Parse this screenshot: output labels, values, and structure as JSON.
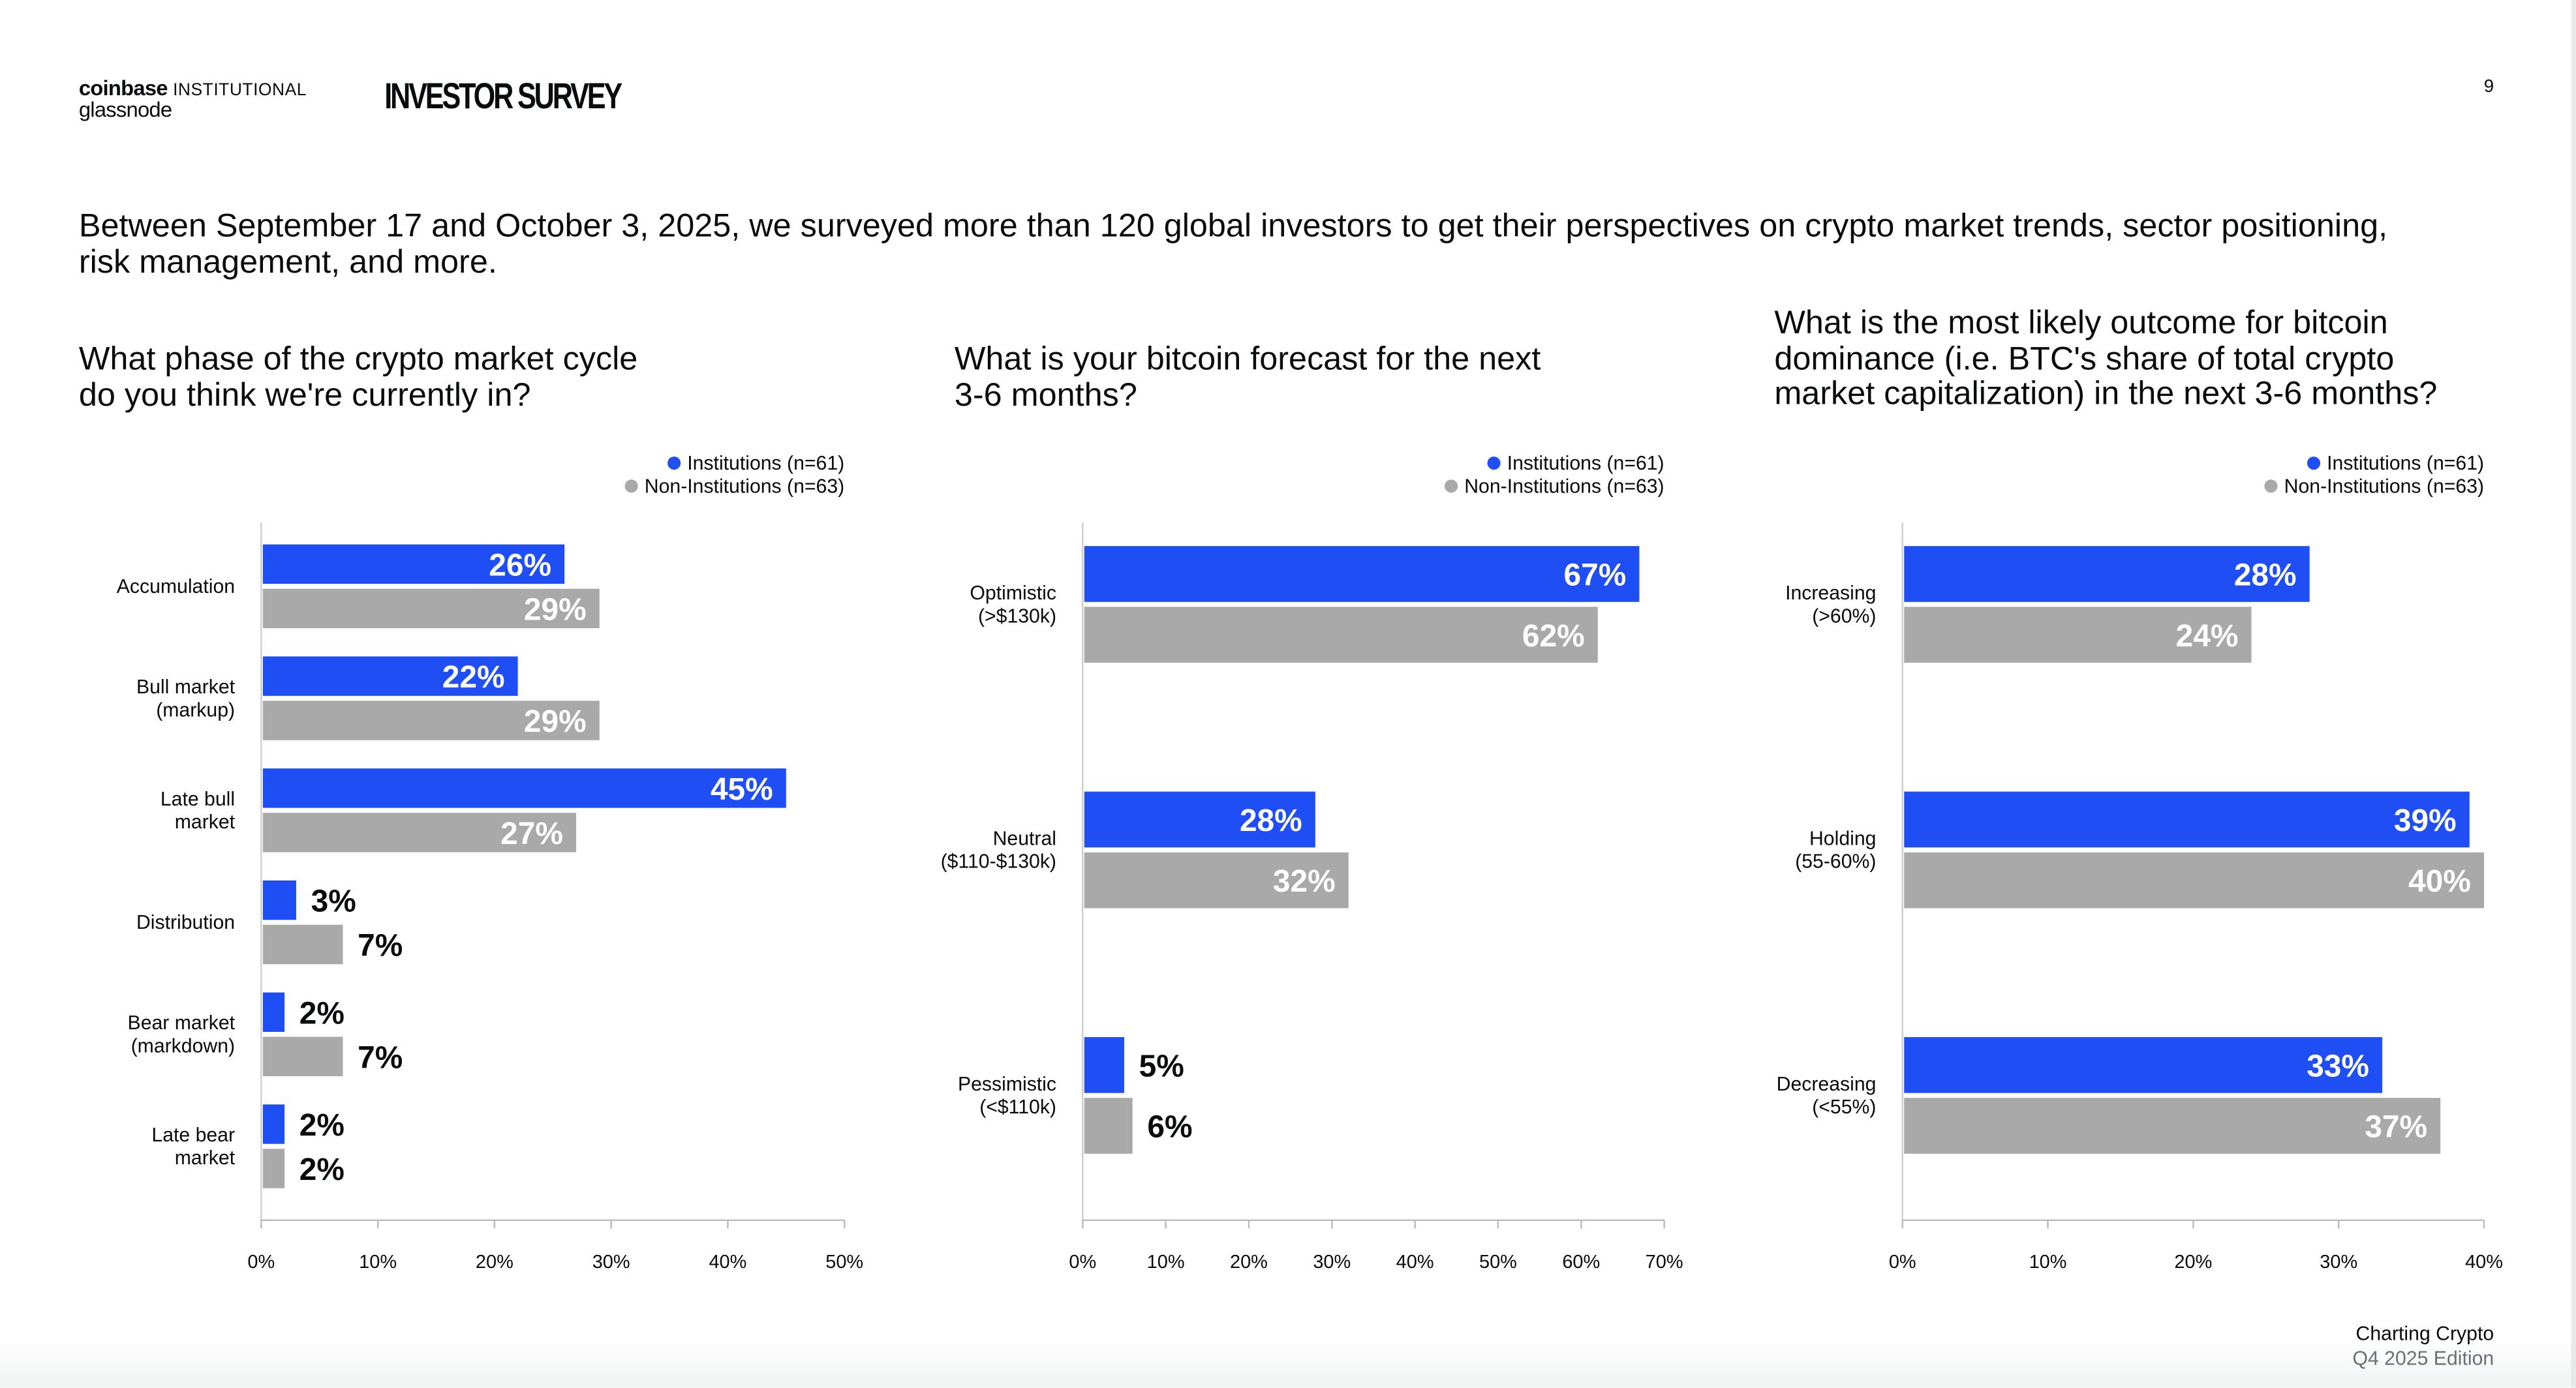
{
  "header": {
    "logo_brand": "coinbase",
    "logo_suffix": "INSTITUTIONAL",
    "logo_partner": "glassnode",
    "section_title": "INVESTOR SURVEY",
    "page_number": "9"
  },
  "intro": "Between September 17 and October 3, 2025, we surveyed more than 120 global investors to get their perspectives on crypto market trends, sector positioning, risk management, and more.",
  "footer": {
    "title": "Charting Crypto",
    "edition": "Q4 2025 Edition"
  },
  "colors": {
    "institutions": "#1f4ef5",
    "non_institutions": "#a9a9a9"
  },
  "chart_data": [
    {
      "type": "bar",
      "orientation": "horizontal",
      "title_lines": [
        "What phase of the crypto market cycle",
        "do you think we're currently in?"
      ],
      "categories": [
        [
          "Accumulation"
        ],
        [
          "Bull market",
          "(markup)"
        ],
        [
          "Late bull",
          "market"
        ],
        [
          "Distribution"
        ],
        [
          "Bear market",
          "(markdown)"
        ],
        [
          "Late bear",
          "market"
        ]
      ],
      "series": [
        {
          "name": "Institutions (n=61)",
          "values": [
            26,
            22,
            45,
            3,
            2,
            2
          ],
          "labels": [
            "26%",
            "22%",
            "45%",
            "3%",
            "2%",
            "2%"
          ]
        },
        {
          "name": "Non-Institutions (n=63)",
          "values": [
            29,
            29,
            27,
            7,
            7,
            2
          ],
          "labels": [
            "29%",
            "29%",
            "27%",
            "7%",
            "7%",
            "2%"
          ]
        }
      ],
      "xlim": [
        0,
        50
      ],
      "ticks": [
        "0%",
        "10%",
        "20%",
        "30%",
        "40%",
        "50%"
      ],
      "legend": "top-right"
    },
    {
      "type": "bar",
      "orientation": "horizontal",
      "title_lines": [
        "What is your bitcoin forecast for the next",
        "3-6 months?"
      ],
      "categories": [
        [
          "Optimistic",
          "(>$130k)"
        ],
        [
          "Neutral",
          "($110-$130k)"
        ],
        [
          "Pessimistic",
          "(<$110k)"
        ]
      ],
      "series": [
        {
          "name": "Institutions (n=61)",
          "values": [
            67,
            28,
            5
          ],
          "labels": [
            "67%",
            "28%",
            "5%"
          ]
        },
        {
          "name": "Non-Institutions (n=63)",
          "values": [
            62,
            32,
            6
          ],
          "labels": [
            "62%",
            "32%",
            "6%"
          ]
        }
      ],
      "xlim": [
        0,
        70
      ],
      "ticks": [
        "0%",
        "10%",
        "20%",
        "30%",
        "40%",
        "50%",
        "60%",
        "70%"
      ],
      "legend": "top-right"
    },
    {
      "type": "bar",
      "orientation": "horizontal",
      "title_lines": [
        "What is the most likely outcome for bitcoin",
        "dominance (i.e. BTC's share of total crypto",
        "market capitalization) in the next 3-6 months?"
      ],
      "categories": [
        [
          "Increasing",
          "(>60%)"
        ],
        [
          "Holding",
          "(55-60%)"
        ],
        [
          "Decreasing",
          "(<55%)"
        ]
      ],
      "series": [
        {
          "name": "Institutions (n=61)",
          "values": [
            28,
            39,
            33
          ],
          "labels": [
            "28%",
            "39%",
            "33%"
          ]
        },
        {
          "name": "Non-Institutions (n=63)",
          "values": [
            24,
            40,
            37
          ],
          "labels": [
            "24%",
            "40%",
            "37%"
          ]
        }
      ],
      "xlim": [
        0,
        40
      ],
      "ticks": [
        "0%",
        "10%",
        "20%",
        "30%",
        "40%"
      ],
      "legend": "top-right"
    }
  ]
}
